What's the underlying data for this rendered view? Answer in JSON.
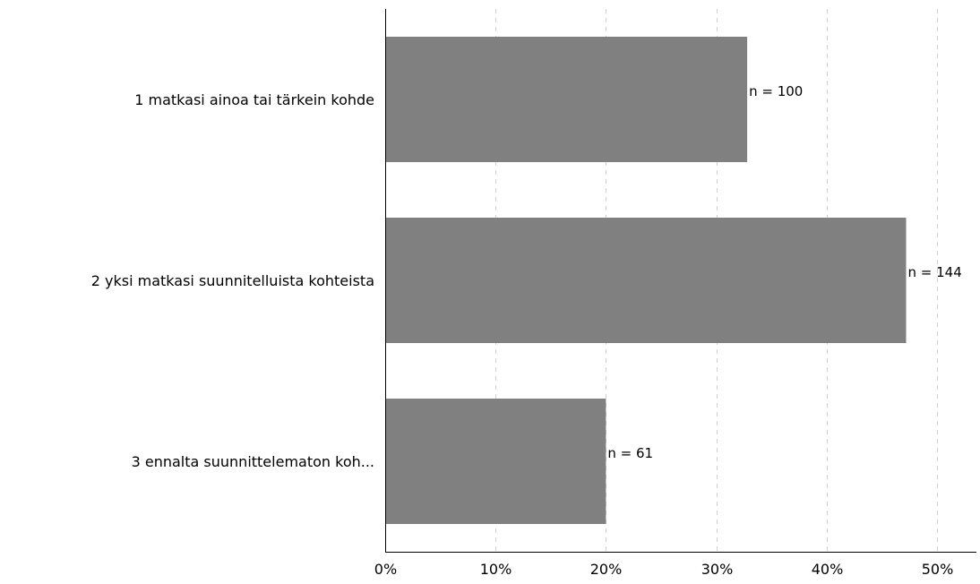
{
  "chart_data": {
    "type": "bar",
    "orientation": "horizontal",
    "categories": [
      "1 matkasi ainoa tai tärkein kohde",
      "2 yksi matkasi suunnitelluista kohteista",
      "3 ennalta suunnittelematon koh..."
    ],
    "values": [
      32.8,
      47.2,
      20.0
    ],
    "value_unit": "%",
    "data_labels": [
      "n = 100",
      "n = 144",
      "n = 61"
    ],
    "xlim": [
      0,
      54
    ],
    "x_ticks": [
      0,
      10,
      20,
      30,
      40,
      50
    ],
    "x_tick_labels": [
      "0%",
      "10%",
      "20%",
      "30%",
      "40%",
      "50%"
    ],
    "title": "",
    "xlabel": "",
    "ylabel": "",
    "grid": "vertical dashed",
    "legend": "none",
    "colors": {
      "bar": "#808080",
      "grid": "#cfcfcf",
      "axis": "#000000",
      "text": "#000000"
    }
  }
}
